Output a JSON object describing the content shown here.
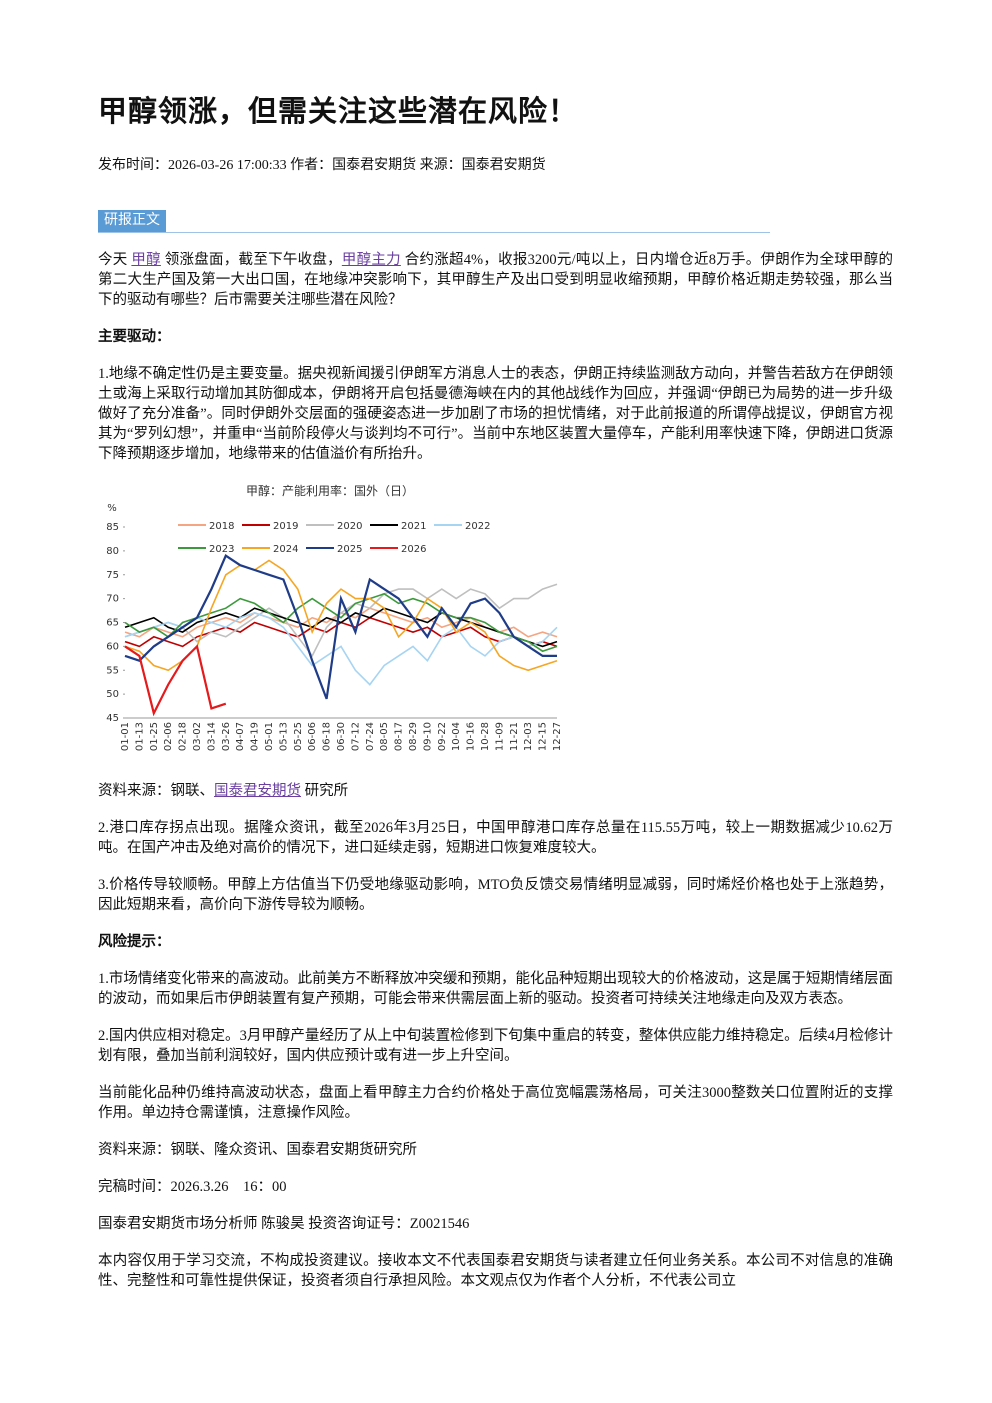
{
  "header": {
    "title": "甲醇领涨，但需关注这些潜在风险！",
    "meta": "发布时间：2026-03-26 17:00:33 作者：国泰君安期货 来源：国泰君安期货"
  },
  "section_tag": "研报正文",
  "intro": [
    "今天 ",
    "甲醇",
    " 领涨盘面，截至下午收盘，",
    "甲醇主力",
    " 合约涨超4%，收报3200元/吨以上，日内增仓近8万手。伊朗作为全球甲醇的第二大生产国及第一大出口国，在地缘冲突影响下，其甲醇生产及出口受到明显收缩预期，甲醇价格近期走势较强，那么当下的驱动有哪些？后市需要关注哪些潜在风险？"
  ],
  "heading_drivers": "主要驱动：",
  "driver_1": "1.地缘不确定性仍是主要变量。据央视新闻援引伊朗军方消息人士的表态，伊朗正持续监测敌方动向，并警告若敌方在伊朗领土或海上采取行动增加其防御成本，伊朗将开启包括曼德海峡在内的其他战线作为回应，并强调“伊朗已为局势的进一步升级做好了充分准备”。同时伊朗外交层面的强硬姿态进一步加剧了市场的担忧情绪，对于此前报道的所谓停战提议，伊朗官方视其为“罗列幻想”，并重申“当前阶段停火与谈判均不可行”。当前中东地区装置大量停车，产能利用率快速下降，伊朗进口货源下降预期逐步增加，地缘带来的估值溢价有所抬升。",
  "chart_data": {
    "type": "line",
    "title": "甲醇：产能利用率：国外（日）",
    "y_unit": "%",
    "categories": [
      "01-01",
      "01-13",
      "01-25",
      "02-06",
      "02-18",
      "03-02",
      "03-14",
      "03-26",
      "04-07",
      "04-19",
      "05-01",
      "05-13",
      "05-25",
      "06-06",
      "06-18",
      "06-30",
      "07-12",
      "07-24",
      "08-05",
      "08-17",
      "08-29",
      "09-10",
      "09-22",
      "10-04",
      "10-16",
      "10-28",
      "11-09",
      "11-21",
      "12-03",
      "12-15",
      "12-27"
    ],
    "ylim": [
      45,
      85
    ],
    "yticks": [
      45,
      50,
      55,
      60,
      65,
      70,
      75,
      80,
      85
    ],
    "series": [
      {
        "name": "2018",
        "color": "#f4a582",
        "values": [
          63,
          62,
          64,
          63,
          62,
          64,
          65,
          66,
          65,
          67,
          66,
          65,
          64,
          66,
          65,
          67,
          66,
          68,
          67,
          66,
          65,
          66,
          64,
          65,
          66,
          64,
          63,
          64,
          62,
          63,
          62
        ]
      },
      {
        "name": "2019",
        "color": "#c00000",
        "values": [
          61,
          60,
          62,
          61,
          60,
          62,
          63,
          64,
          63,
          65,
          64,
          63,
          62,
          64,
          63,
          65,
          64,
          66,
          65,
          64,
          63,
          64,
          62,
          63,
          64,
          62,
          61,
          62,
          60,
          61,
          60
        ]
      },
      {
        "name": "2020",
        "color": "#bfbfbf",
        "values": [
          62,
          63,
          64,
          65,
          64,
          61,
          63,
          62,
          64,
          66,
          68,
          66,
          62,
          58,
          64,
          67,
          69,
          68,
          71,
          72,
          72,
          70,
          72,
          70,
          72,
          71,
          68,
          70,
          70,
          72,
          73
        ]
      },
      {
        "name": "2021",
        "color": "#000000",
        "values": [
          64,
          65,
          66,
          64,
          63,
          65,
          66,
          67,
          66,
          68,
          67,
          66,
          65,
          64,
          66,
          65,
          67,
          66,
          68,
          67,
          66,
          65,
          67,
          66,
          65,
          64,
          63,
          62,
          61,
          60,
          61
        ]
      },
      {
        "name": "2022",
        "color": "#a6d4f2",
        "values": [
          62,
          63,
          64,
          65,
          64,
          66,
          65,
          64,
          66,
          67,
          66,
          64,
          60,
          56,
          58,
          60,
          55,
          52,
          56,
          58,
          60,
          57,
          62,
          64,
          60,
          58,
          61,
          62,
          60,
          61,
          64
        ]
      },
      {
        "name": "2023",
        "color": "#3c9a3c",
        "values": [
          65,
          63,
          64,
          62,
          65,
          66,
          67,
          68,
          70,
          69,
          67,
          65,
          68,
          70,
          68,
          66,
          69,
          70,
          71,
          69,
          70,
          69,
          67,
          66,
          66,
          65,
          63,
          62,
          61,
          59,
          60
        ]
      },
      {
        "name": "2024",
        "color": "#f5a623",
        "values": [
          60,
          59,
          56,
          55,
          57,
          60,
          68,
          75,
          77,
          76,
          78,
          76,
          72,
          63,
          69,
          72,
          70,
          70,
          68,
          62,
          65,
          70,
          68,
          63,
          65,
          63,
          58,
          56,
          55,
          56,
          57
        ]
      },
      {
        "name": "2025",
        "color": "#1f3c88",
        "values": [
          58,
          57,
          60,
          62,
          64,
          66,
          72,
          79,
          77,
          76,
          75,
          74,
          66,
          57,
          49,
          70,
          63,
          74,
          72,
          70,
          66,
          62,
          68,
          64,
          69,
          70,
          67,
          62,
          60,
          58,
          58
        ]
      },
      {
        "name": "2026",
        "color": "#e41a1c",
        "values": [
          60,
          58,
          46,
          52,
          57,
          60,
          47,
          48,
          null,
          null,
          null,
          null,
          null,
          null,
          null,
          null,
          null,
          null,
          null,
          null,
          null,
          null,
          null,
          null,
          null,
          null,
          null,
          null,
          null,
          null,
          null
        ]
      }
    ]
  },
  "source_1": [
    "资料来源：钢联、",
    "国泰君安期货",
    " 研究所"
  ],
  "driver_2": "2.港口库存拐点出现。据隆众资讯，截至2026年3月25日，中国甲醇港口库存总量在115.55万吨，较上一期数据减少10.62万吨。在国产冲击及绝对高价的情况下，进口延续走弱，短期进口恢复难度较大。",
  "driver_3": "3.价格传导较顺畅。甲醇上方估值当下仍受地缘驱动影响，MTO负反馈交易情绪明显减弱，同时烯烃价格也处于上涨趋势，因此短期来看，高价向下游传导较为顺畅。",
  "heading_risks": "风险提示：",
  "risk_1": "1.市场情绪变化带来的高波动。此前美方不断释放冲突缓和预期，能化品种短期出现较大的价格波动，这是属于短期情绪层面的波动，而如果后市伊朗装置有复产预期，可能会带来供需层面上新的驱动。投资者可持续关注地缘走向及双方表态。",
  "risk_2": "2.国内供应相对稳定。3月甲醇产量经历了从上中旬装置检修到下旬集中重启的转变，整体供应能力维持稳定。后续4月检修计划有限，叠加当前利润较好，国内供应预计或有进一步上升空间。",
  "conclusion": "当前能化品种仍维持高波动状态，盘面上看甲醇主力合约价格处于高位宽幅震荡格局，可关注3000整数关口位置附近的支撑作用。单边持仓需谨慎，注意操作风险。",
  "source_2": "资料来源：钢联、隆众资讯、国泰君安期货研究所",
  "completed": "完稿时间：2026.3.26　16：00",
  "analyst": "国泰君安期货市场分析师 陈骏昊 投资咨询证号：Z0021546",
  "disclaimer": "本内容仅用于学习交流，不构成投资建议。接收本文不代表国泰君安期货与读者建立任何业务关系。本公司不对信息的准确性、完整性和可靠性提供保证，投资者须自行承担风险。本文观点仅为作者个人分析，不代表公司立"
}
